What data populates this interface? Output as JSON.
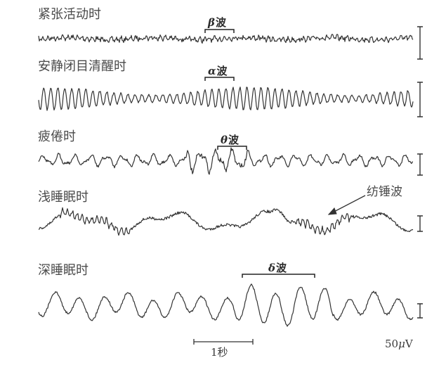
{
  "states": [
    {
      "label": "紧张活动时",
      "wave_greek": "β",
      "wave_suffix": "波"
    },
    {
      "label": "安静闭目清醒时",
      "wave_greek": "α",
      "wave_suffix": "波"
    },
    {
      "label": "疲倦时",
      "wave_greek": "θ",
      "wave_suffix": "波"
    },
    {
      "label": "浅睡眠时",
      "wave_greek": "",
      "wave_suffix": ""
    },
    {
      "label": "深睡眠时",
      "wave_greek": "δ",
      "wave_suffix": "波"
    }
  ],
  "spindle_label": "纺锤波",
  "time_scale_label": "1秒",
  "amplitude_scale": {
    "value": "50",
    "mu": "μ",
    "unit": "V"
  }
}
